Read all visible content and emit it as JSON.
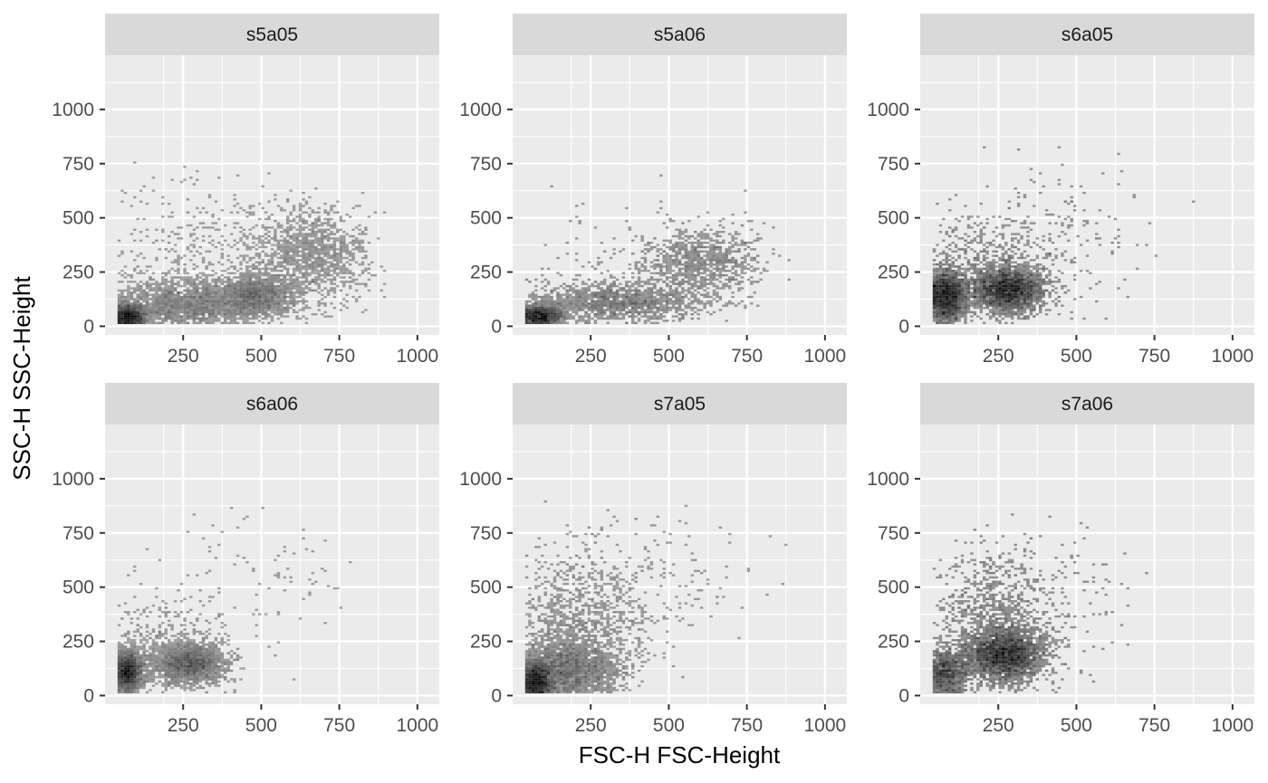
{
  "chart_data": {
    "type": "heatmap",
    "title": "",
    "xlabel": "FSC-H FSC-Height",
    "ylabel": "SSC-H SSC-Height",
    "xlim": [
      0,
      1070
    ],
    "ylim": [
      -40,
      1250
    ],
    "x_ticks": [
      250,
      500,
      750,
      1000
    ],
    "y_ticks": [
      0,
      250,
      500,
      750,
      1000
    ],
    "x_tick_labels": [
      "250",
      "500",
      "750",
      "1000"
    ],
    "y_tick_labels": [
      "0",
      "250",
      "500",
      "750",
      "1000"
    ],
    "grid": true,
    "fill_color": "#000000",
    "panel_background": "#ebebeb",
    "strip_background": "#d9d9d9",
    "facets": [
      {
        "label": "s5a05",
        "clusters": [
          {
            "x": 70,
            "y": 40,
            "sx": 30,
            "sy": 30,
            "weight": 1.0
          },
          {
            "x": 260,
            "y": 100,
            "sx": 120,
            "sy": 60,
            "weight": 0.85
          },
          {
            "x": 480,
            "y": 140,
            "sx": 60,
            "sy": 50,
            "weight": 0.6
          },
          {
            "x": 660,
            "y": 330,
            "sx": 90,
            "sy": 110,
            "weight": 0.5
          },
          {
            "x": 300,
            "y": 320,
            "sx": 170,
            "sy": 170,
            "weight": 0.15
          }
        ]
      },
      {
        "label": "s5a06",
        "clusters": [
          {
            "x": 80,
            "y": 45,
            "sx": 40,
            "sy": 25,
            "weight": 0.7
          },
          {
            "x": 330,
            "y": 110,
            "sx": 140,
            "sy": 45,
            "weight": 0.55
          },
          {
            "x": 600,
            "y": 300,
            "sx": 100,
            "sy": 80,
            "weight": 0.35
          },
          {
            "x": 400,
            "y": 260,
            "sx": 220,
            "sy": 160,
            "weight": 0.06
          }
        ]
      },
      {
        "label": "s6a05",
        "clusters": [
          {
            "x": 80,
            "y": 140,
            "sx": 35,
            "sy": 60,
            "weight": 0.9
          },
          {
            "x": 280,
            "y": 170,
            "sx": 55,
            "sy": 50,
            "weight": 1.0
          },
          {
            "x": 230,
            "y": 260,
            "sx": 130,
            "sy": 140,
            "weight": 0.25
          },
          {
            "x": 450,
            "y": 450,
            "sx": 150,
            "sy": 170,
            "weight": 0.05
          }
        ]
      },
      {
        "label": "s6a06",
        "clusters": [
          {
            "x": 70,
            "y": 110,
            "sx": 25,
            "sy": 45,
            "weight": 1.0
          },
          {
            "x": 270,
            "y": 150,
            "sx": 55,
            "sy": 45,
            "weight": 0.8
          },
          {
            "x": 180,
            "y": 220,
            "sx": 110,
            "sy": 110,
            "weight": 0.2
          },
          {
            "x": 450,
            "y": 520,
            "sx": 170,
            "sy": 180,
            "weight": 0.04
          }
        ]
      },
      {
        "label": "s7a05",
        "clusters": [
          {
            "x": 70,
            "y": 60,
            "sx": 30,
            "sy": 50,
            "weight": 1.0
          },
          {
            "x": 180,
            "y": 120,
            "sx": 80,
            "sy": 70,
            "weight": 0.75
          },
          {
            "x": 210,
            "y": 320,
            "sx": 110,
            "sy": 170,
            "weight": 0.45
          },
          {
            "x": 420,
            "y": 560,
            "sx": 180,
            "sy": 180,
            "weight": 0.06
          }
        ]
      },
      {
        "label": "s7a06",
        "clusters": [
          {
            "x": 80,
            "y": 100,
            "sx": 40,
            "sy": 60,
            "weight": 0.45
          },
          {
            "x": 270,
            "y": 190,
            "sx": 60,
            "sy": 60,
            "weight": 1.0
          },
          {
            "x": 230,
            "y": 330,
            "sx": 90,
            "sy": 150,
            "weight": 0.35
          },
          {
            "x": 380,
            "y": 420,
            "sx": 120,
            "sy": 180,
            "weight": 0.08
          }
        ]
      }
    ]
  }
}
